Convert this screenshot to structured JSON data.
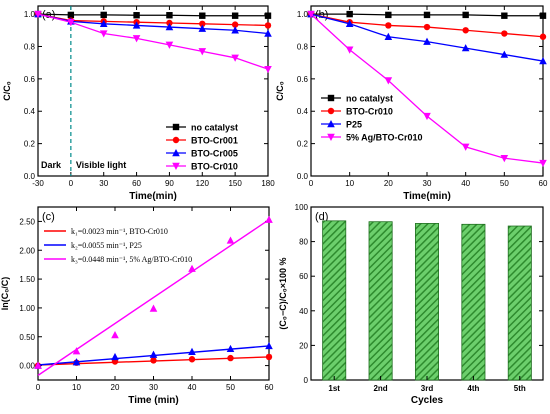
{
  "chart_data": [
    {
      "panel": "(a)",
      "type": "line",
      "xlabel": "Time(min)",
      "ylabel": "C/C₀",
      "xlim": [
        -30,
        180
      ],
      "ylim": [
        0,
        1.05
      ],
      "xticks": [
        -30,
        0,
        30,
        60,
        90,
        120,
        150,
        180
      ],
      "yticks": [
        0.0,
        0.2,
        0.4,
        0.6,
        0.8,
        1.0
      ],
      "legend_position": "center-right",
      "annotations": [
        "Dark",
        "Visible light"
      ],
      "dashed_vline_x": 0,
      "series": [
        {
          "name": "no catalyst",
          "color": "#000000",
          "marker": "square",
          "x": [
            -30,
            0,
            30,
            60,
            90,
            120,
            150,
            180
          ],
          "y": [
            1.0,
            0.995,
            0.995,
            0.993,
            0.993,
            0.99,
            0.99,
            0.99
          ]
        },
        {
          "name": "BTO-Cr001",
          "color": "#ff0000",
          "marker": "circle",
          "x": [
            -30,
            0,
            30,
            60,
            90,
            120,
            150,
            180
          ],
          "y": [
            1.0,
            0.96,
            0.955,
            0.95,
            0.945,
            0.94,
            0.935,
            0.93
          ]
        },
        {
          "name": "BTO-Cr005",
          "color": "#0000ff",
          "marker": "triangle-up",
          "x": [
            -30,
            0,
            30,
            60,
            90,
            120,
            150,
            180
          ],
          "y": [
            1.0,
            0.955,
            0.94,
            0.93,
            0.92,
            0.91,
            0.9,
            0.88
          ]
        },
        {
          "name": "BTO-Cr010",
          "color": "#ff00ff",
          "marker": "triangle-down",
          "x": [
            -30,
            0,
            30,
            60,
            90,
            120,
            150,
            180
          ],
          "y": [
            1.0,
            0.95,
            0.88,
            0.85,
            0.81,
            0.77,
            0.73,
            0.66
          ]
        }
      ]
    },
    {
      "panel": "(b)",
      "type": "line",
      "xlabel": "Time(min)",
      "ylabel": "C/C₀",
      "xlim": [
        0,
        60
      ],
      "ylim": [
        0,
        1.05
      ],
      "xticks": [
        0,
        10,
        20,
        30,
        40,
        50,
        60
      ],
      "yticks": [
        0.0,
        0.2,
        0.4,
        0.6,
        0.8,
        1.0
      ],
      "legend_position": "bottom-left",
      "series": [
        {
          "name": "no catalyst",
          "color": "#000000",
          "marker": "square",
          "x": [
            0,
            10,
            20,
            30,
            40,
            50,
            60
          ],
          "y": [
            1.0,
            1.0,
            0.995,
            0.995,
            0.995,
            0.99,
            0.99
          ]
        },
        {
          "name": "BTO-Cr010",
          "color": "#ff0000",
          "marker": "circle",
          "x": [
            0,
            10,
            20,
            30,
            40,
            50,
            60
          ],
          "y": [
            1.0,
            0.95,
            0.93,
            0.92,
            0.9,
            0.88,
            0.86
          ]
        },
        {
          "name": "P25",
          "color": "#0000ff",
          "marker": "triangle-up",
          "x": [
            0,
            10,
            20,
            30,
            40,
            50,
            60
          ],
          "y": [
            1.0,
            0.94,
            0.86,
            0.83,
            0.79,
            0.75,
            0.71
          ]
        },
        {
          "name": "5% Ag/BTO-Cr010",
          "color": "#ff00ff",
          "marker": "triangle-down",
          "x": [
            0,
            10,
            20,
            30,
            40,
            50,
            60
          ],
          "y": [
            1.0,
            0.78,
            0.59,
            0.37,
            0.18,
            0.11,
            0.08
          ]
        }
      ]
    },
    {
      "panel": "(c)",
      "type": "scatter",
      "xlabel": "Time (min)",
      "ylabel": "ln(C₀/C)",
      "xlim": [
        0,
        60
      ],
      "ylim": [
        -0.25,
        2.75
      ],
      "xticks": [
        0,
        10,
        20,
        30,
        40,
        50,
        60
      ],
      "yticks": [
        0.0,
        0.5,
        1.0,
        1.5,
        2.0,
        2.5
      ],
      "legend_position": "top-left",
      "series": [
        {
          "name": "k₁=0.0023 min⁻¹, BTO-Cr010",
          "color": "#ff0000",
          "marker": "circle",
          "x": [
            0,
            10,
            20,
            30,
            40,
            50,
            60
          ],
          "y": [
            0.0,
            0.05,
            0.07,
            0.09,
            0.11,
            0.13,
            0.15
          ],
          "fit": {
            "x": [
              0,
              60
            ],
            "y": [
              0.01,
              0.15
            ]
          }
        },
        {
          "name": "k₂=0.0055 min⁻¹, P25",
          "color": "#0000ff",
          "marker": "triangle-up",
          "x": [
            0,
            10,
            20,
            30,
            40,
            50,
            60
          ],
          "y": [
            0.0,
            0.06,
            0.15,
            0.19,
            0.24,
            0.29,
            0.34
          ],
          "fit": {
            "x": [
              0,
              60
            ],
            "y": [
              0.01,
              0.34
            ]
          }
        },
        {
          "name": "k₃=0.0448 min⁻¹, 5% Ag/BTO-Cr010",
          "color": "#ff00ff",
          "marker": "triangle-up",
          "x": [
            0,
            10,
            20,
            30,
            40,
            50,
            60
          ],
          "y": [
            0.0,
            0.25,
            0.53,
            0.99,
            1.68,
            2.17,
            2.53
          ],
          "fit": {
            "x": [
              0,
              60
            ],
            "y": [
              -0.17,
              2.53
            ]
          }
        }
      ]
    },
    {
      "panel": "(d)",
      "type": "bar",
      "xlabel": "Cycles",
      "ylabel": "(C₀−C)/C₀×100 %",
      "ylim": [
        0,
        100
      ],
      "yticks": [
        0,
        20,
        40,
        60,
        80,
        100
      ],
      "categories": [
        "1st",
        "2nd",
        "3rd",
        "4th",
        "5th"
      ],
      "values": [
        92,
        91.5,
        90.5,
        90,
        89
      ],
      "bar_color": "#2e8b2e",
      "bar_hatch": "diagonal"
    }
  ]
}
